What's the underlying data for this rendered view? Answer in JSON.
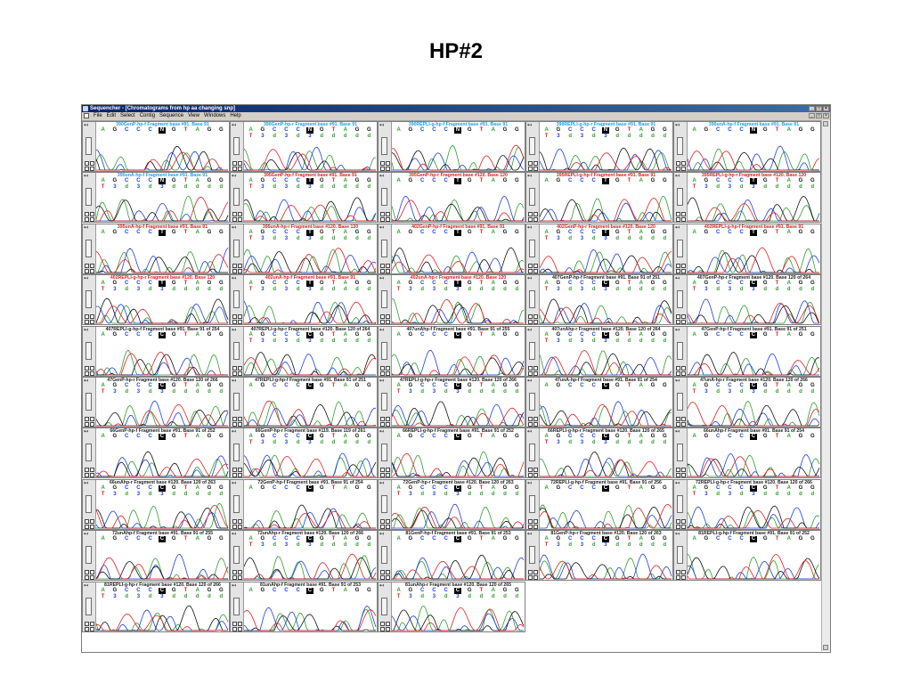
{
  "slide": {
    "title": "HP#2"
  },
  "window": {
    "title": "Sequencher - [Chromatograms from hp aa changing snp]",
    "menu": [
      "File",
      "Edit",
      "Select",
      "Contig",
      "Sequence",
      "View",
      "Windows",
      "Help"
    ],
    "controls": [
      "_",
      "□",
      "×"
    ]
  },
  "colors": {
    "A": "#2e9e2e",
    "C": "#1e3ee0",
    "G": "#111111",
    "T": "#e02020",
    "N": "#1e3ee0"
  },
  "panels": [
    {
      "title": "390GenP-hp-f Fragment base #91. Base 91",
      "tcolor": "#1ea0e6",
      "fwd": "AGCCCNGTAGG",
      "rev": "",
      "hl": 5
    },
    {
      "title": "390GenP-hp-r Fragment base #91. Base 91",
      "tcolor": "#1ea0e6",
      "fwd": "AGCCCNGTAGG",
      "rev": "T3d3d3ddddd",
      "hl": 5
    },
    {
      "title": "390REPLI-g-hp-f Fragment base #91. Base 91",
      "tcolor": "#1ea0e6",
      "fwd": "AGCCCNGTAGG",
      "rev": "",
      "hl": 5
    },
    {
      "title": "390REPLI-g-hp-r Fragment base #91. Base 91",
      "tcolor": "#1ea0e6",
      "fwd": "AGCCCNGTAGG",
      "rev": "T3d3d3ddddd",
      "hl": 5
    },
    {
      "title": "390unA-hp-f Fragment base #91. Base 91",
      "tcolor": "#1ea0e6",
      "fwd": "AGCCCNGTAGG",
      "rev": "",
      "hl": 5
    },
    {
      "title": "390unA-hp-f Fragment base #91. Base 91",
      "tcolor": "#1ea0e6",
      "fwd": "AGCCCNGTAGG",
      "rev": "T3d3d3ddddd",
      "hl": 5
    },
    {
      "title": "395GenP-hp-f Fragment base #91. Base 91",
      "tcolor": "#e02020",
      "fwd": "AGCCCTGTAGG",
      "rev": "T3d3d3ddddd",
      "hl": 5
    },
    {
      "title": "395GenP-hp-r Fragment base #120. Base 120",
      "tcolor": "#e02020",
      "fwd": "AGCCCTGTAGG",
      "rev": "",
      "hl": 5
    },
    {
      "title": "395REPLI-g-hp-f Fragment base #91. Base 91",
      "tcolor": "#e02020",
      "fwd": "AGCCCTGTAGG",
      "rev": "",
      "hl": 5
    },
    {
      "title": "395REPLI-g-hp-r Fragment base #120. Base 120",
      "tcolor": "#e02020",
      "fwd": "AGCCCTGTAGG",
      "rev": "T3d3d3ddddd",
      "hl": 5
    },
    {
      "title": "395unA-hp-f Fragment base #91. Base 91",
      "tcolor": "#e02020",
      "fwd": "AGCCCTGTAGG",
      "rev": "",
      "hl": 5
    },
    {
      "title": "395unA-hp-r Fragment base #120. Base 120",
      "tcolor": "#e02020",
      "fwd": "AGCCCTGTAGG",
      "rev": "T3d3d3ddddd",
      "hl": 5
    },
    {
      "title": "402GenP-hp-f Fragment base #91. Base 91",
      "tcolor": "#e02020",
      "fwd": "AGCCCTGTAGG",
      "rev": "",
      "hl": 5
    },
    {
      "title": "402GenP-hp-r Fragment base #120. Base 120",
      "tcolor": "#e02020",
      "fwd": "AGCCCTGTAGG",
      "rev": "T3d3d3ddddd",
      "hl": 5
    },
    {
      "title": "402REPLI-g-hp-f Fragment base #91. Base 91",
      "tcolor": "#e02020",
      "fwd": "AGCCCTGTAGG",
      "rev": "",
      "hl": 5
    },
    {
      "title": "402REPLI-g-hp-r Fragment base #120. Base 120",
      "tcolor": "#e02020",
      "fwd": "AGCCCTGTAGG",
      "rev": "T3d3d3ddddd",
      "hl": 5
    },
    {
      "title": "402unA-hp-f Fragment base #91. Base 91",
      "tcolor": "#e02020",
      "fwd": "AGCCCTGTAGG",
      "rev": "T3d3d3ddddd",
      "hl": 5
    },
    {
      "title": "402unA-hp-r Fragment base #120. Base 120",
      "tcolor": "#e02020",
      "fwd": "AGCCCTGTAGG",
      "rev": "T3d3d3ddddd",
      "hl": 5
    },
    {
      "title": "407GenP-hp-f Fragment base #91. Base 91 of 251",
      "tcolor": "#222222",
      "fwd": "AGCCCCGTAGG",
      "rev": "T3d3d3ddddd",
      "hl": 5
    },
    {
      "title": "407GenP-hp-r Fragment base #120. Base 120 of 264",
      "tcolor": "#222222",
      "fwd": "AGCCCCGTAGG",
      "rev": "T3d3d3ddddd",
      "hl": 5
    },
    {
      "title": "407REPLI-g-hp-f Fragment base #91. Base 91 of 254",
      "tcolor": "#222222",
      "fwd": "AGCCCCGTAGG",
      "rev": "",
      "hl": 5
    },
    {
      "title": "407REPLI-g-hp-r Fragment base #120. Base 120 of 264",
      "tcolor": "#222222",
      "fwd": "AGCCCCGTAGG",
      "rev": "T3d3d3ddddd",
      "hl": 5
    },
    {
      "title": "407unAhp-f Fragment base #91. Base 91 of 255",
      "tcolor": "#222222",
      "fwd": "AGCCCCGTAGG",
      "rev": "",
      "hl": 5
    },
    {
      "title": "407unAhp-r Fragment base #120. Base 120 of 264",
      "tcolor": "#222222",
      "fwd": "AGCCCCGTAGG",
      "rev": "T3d3d3ddddd",
      "hl": 5
    },
    {
      "title": "47GenP-hp-f Fragment base #91. Base 91 of 251",
      "tcolor": "#222222",
      "fwd": "AGCCCCGTAGG",
      "rev": "",
      "hl": 5
    },
    {
      "title": "47GenP-hp-r Fragment base #120. Base 120 of 266",
      "tcolor": "#222222",
      "fwd": "AGCCCCGTAGG",
      "rev": "T3d3d3ddddd",
      "hl": 5
    },
    {
      "title": "47REPLI-g-hp-f Fragment base #91. Base 91 of 251",
      "tcolor": "#222222",
      "fwd": "AGCCCCGTAGG",
      "rev": "",
      "hl": 5
    },
    {
      "title": "47REPLI-g-hp-r Fragment base #120. Base 120 of 266",
      "tcolor": "#222222",
      "fwd": "AGCCCCGTAGG",
      "rev": "T3d3d3ddddd",
      "hl": 5
    },
    {
      "title": "47unA-hp-f Fragment base #91. Base 91 of 254",
      "tcolor": "#222222",
      "fwd": "AGCCCCGTAGG",
      "rev": "",
      "hl": 5
    },
    {
      "title": "47unA-hp-r Fragment base #120. Base 120 of 266",
      "tcolor": "#222222",
      "fwd": "AGCCCCGTAGG",
      "rev": "T3d3d3ddddd",
      "hl": 5
    },
    {
      "title": "66GenP-hp-f Fragment base #91. Base 91 of 252",
      "tcolor": "#222222",
      "fwd": "AGCCCCGTAGG",
      "rev": "",
      "hl": 5
    },
    {
      "title": "66GenP-hp-r Fragment base #119. Base 119 of 261",
      "tcolor": "#222222",
      "fwd": "AGCCCCGTAGG",
      "rev": "T3d3d3ddddd",
      "hl": 5
    },
    {
      "title": "66REPLI-g-hp-f Fragment base #91. Base 91 of 252",
      "tcolor": "#222222",
      "fwd": "AGCCCCGTAGG",
      "rev": "",
      "hl": 5
    },
    {
      "title": "66REPLI-g-hp-r Fragment base #120. Base 120 of 265",
      "tcolor": "#222222",
      "fwd": "AGCCCCGTAGG",
      "rev": "T3d3d3ddddd",
      "hl": 5
    },
    {
      "title": "66unAhp-f Fragment base #91. Base 91 of 254",
      "tcolor": "#222222",
      "fwd": "AGCCCCGTAGG",
      "rev": "",
      "hl": 5
    },
    {
      "title": "66unAhp-r Fragment base #120. Base 120 of 263",
      "tcolor": "#222222",
      "fwd": "AGCCCCGTAGG",
      "rev": "T3d3d3ddddd",
      "hl": 5
    },
    {
      "title": "72GenP-hp-f Fragment base #91. Base 91 of 254",
      "tcolor": "#222222",
      "fwd": "AGCCCCGTAGG",
      "rev": "",
      "hl": 5
    },
    {
      "title": "72GenP-hp-r Fragment base #120. Base 120 of 263",
      "tcolor": "#222222",
      "fwd": "AGCCCCGTAGG",
      "rev": "T3d3d3ddddd",
      "hl": 5
    },
    {
      "title": "72REPLI-g-hp-f Fragment base #91. Base 91 of 256",
      "tcolor": "#222222",
      "fwd": "AGCCCCGTAGG",
      "rev": "",
      "hl": 5
    },
    {
      "title": "72REPLI-g-hp-r Fragment base #120. Base 120 of 266",
      "tcolor": "#222222",
      "fwd": "AGCCCCGTAGG",
      "rev": "T3d3d3ddddd",
      "hl": 5
    },
    {
      "title": "72unAhp-f Fragment base #91. Base 91 of 255",
      "tcolor": "#222222",
      "fwd": "AGCCCCGTAGG",
      "rev": "",
      "hl": 5
    },
    {
      "title": "72unAhp-r Fragment base #120. Base 120 of 266",
      "tcolor": "#222222",
      "fwd": "AGCCCCGTAGG",
      "rev": "T3d3d3ddddd",
      "hl": 5
    },
    {
      "title": "81GenP-hp-f Fragment base #91. Base 91 of 253",
      "tcolor": "#222222",
      "fwd": "AGCCCCGTAGG",
      "rev": "",
      "hl": 5
    },
    {
      "title": "81GenP-hp-r Fragment base #120. Base 120 of 263",
      "tcolor": "#222222",
      "fwd": "AGCCCCGTAGG",
      "rev": "T3d3d3ddddd",
      "hl": 5
    },
    {
      "title": "81REPLI-g-hp-f Fragment base #91. Base 91 of 252",
      "tcolor": "#222222",
      "fwd": "AGCCCCGTAGG",
      "rev": "",
      "hl": 5
    },
    {
      "title": "81REPLI-g-hp-r Fragment base #120. Base 120 of 266",
      "tcolor": "#222222",
      "fwd": "AGCCCCGTAGG",
      "rev": "T3d3d3ddddd",
      "hl": 5
    },
    {
      "title": "81unAhp-f Fragment base #91. Base 91 of 253",
      "tcolor": "#222222",
      "fwd": "AGCCCCGTAGG",
      "rev": "",
      "hl": 5
    },
    {
      "title": "81unAhp-r Fragment base #120. Base 120 of 265",
      "tcolor": "#222222",
      "fwd": "AGCCCCGTAGG",
      "rev": "T3d3d3ddddd",
      "hl": 5
    }
  ]
}
